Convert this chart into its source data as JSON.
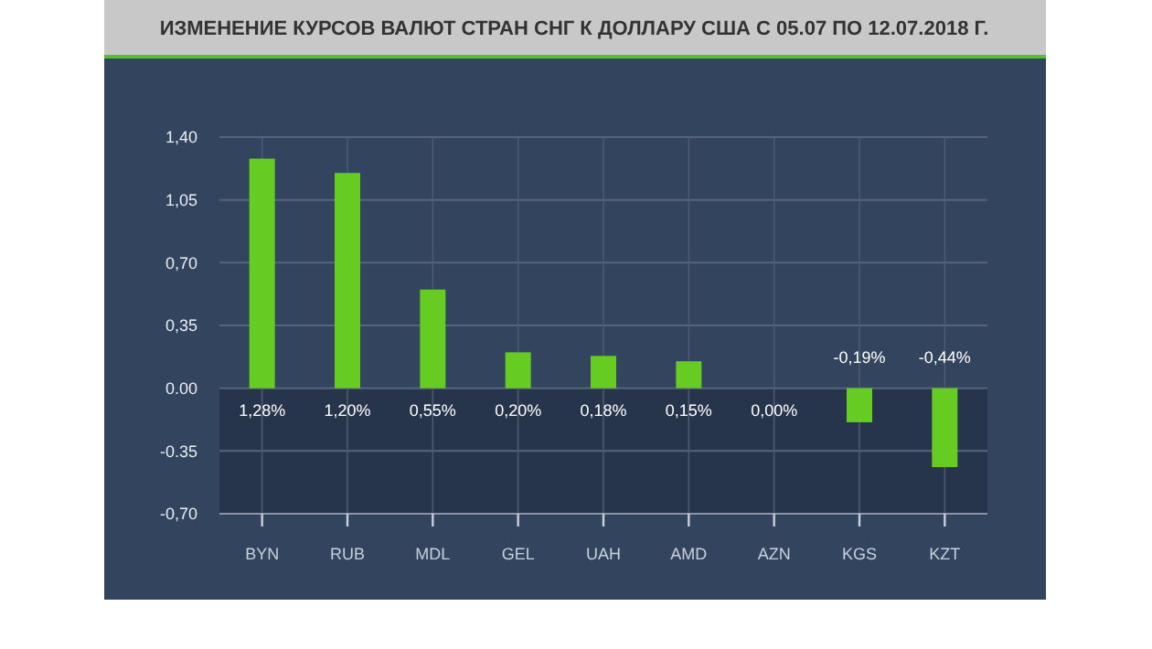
{
  "chart_data": {
    "type": "bar",
    "title": "ИЗМЕНЕНИЕ КУРСОВ ВАЛЮТ СТРАН СНГ К ДОЛЛАРУ США С 05.07 ПО 12.07.2018 Г.",
    "categories": [
      "BYN",
      "RUB",
      "MDL",
      "GEL",
      "UAH",
      "AMD",
      "AZN",
      "KGS",
      "KZT"
    ],
    "values": [
      1.28,
      1.2,
      0.55,
      0.2,
      0.18,
      0.15,
      0,
      -0.19,
      -0.44
    ],
    "value_labels": [
      "1,28%",
      "1,20%",
      "0,55%",
      "0,20%",
      "0,18%",
      "0,15%",
      "0,00%",
      "-0,19%",
      "-0,44%"
    ],
    "color": "#66cc22",
    "ylim": [
      -0.7,
      1.4
    ],
    "yticks": [
      {
        "value": -0.7,
        "label": "-0,70"
      },
      {
        "value": -0.35,
        "label": "-0.35"
      },
      {
        "value": 0,
        "label": "0.00"
      },
      {
        "value": 0.35,
        "label": "0,35"
      },
      {
        "value": 0.7,
        "label": "0,70"
      },
      {
        "value": 1.05,
        "label": "1,05"
      },
      {
        "value": 1.4,
        "label": "1,40"
      }
    ],
    "bands": [
      {
        "axis": "y",
        "from": -0.7,
        "to": 0,
        "color": "#27354c"
      }
    ],
    "grid": true
  }
}
